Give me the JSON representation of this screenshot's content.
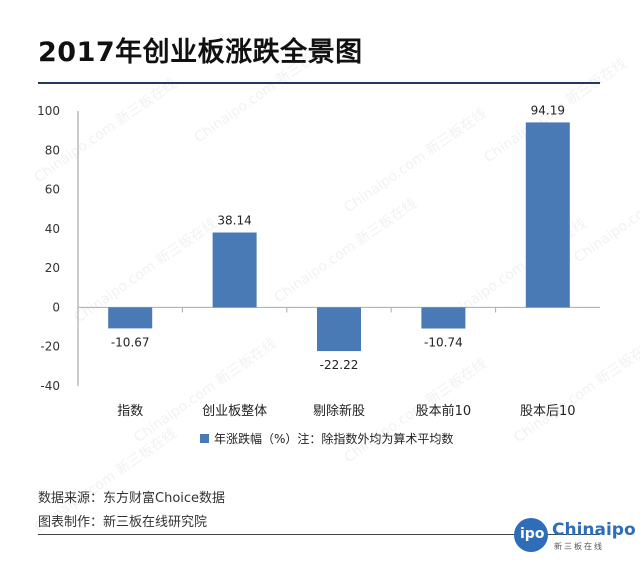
{
  "title": "2017年创业板涨跌全景图",
  "chart_data": {
    "type": "bar",
    "categories": [
      "指数",
      "创业板整体",
      "剔除新股",
      "股本前10",
      "股本后10"
    ],
    "series": [
      {
        "name": "年涨跌幅（%）注：除指数外均为算术平均数",
        "values": [
          -10.67,
          38.14,
          -22.22,
          -10.74,
          94.19
        ],
        "labels": [
          "-10.67",
          "38.14",
          "-22.22",
          "-10.74",
          "94.19"
        ]
      }
    ],
    "ylim": [
      -40,
      100
    ],
    "yticks": [
      -40,
      -20,
      0,
      20,
      40,
      60,
      80,
      100
    ],
    "ytick_labels": [
      "-40",
      "-20",
      "0",
      "20",
      "40",
      "60",
      "80",
      "100"
    ],
    "grid": false,
    "legend": "bottom",
    "bar_color": "#4a7ab5"
  },
  "footer": {
    "source": "数据来源：东方财富Choice数据",
    "producer": "图表制作：新三板在线研究院"
  },
  "logo": {
    "badge": "ipo",
    "word": "Chinaipo",
    "sub": "新三板在线"
  },
  "watermark": "Chinaipo.com 新三板在线",
  "colors": {
    "title_rule": "#1f3a5f",
    "bar": "#4a7ab5",
    "brand": "#2e6db8"
  }
}
